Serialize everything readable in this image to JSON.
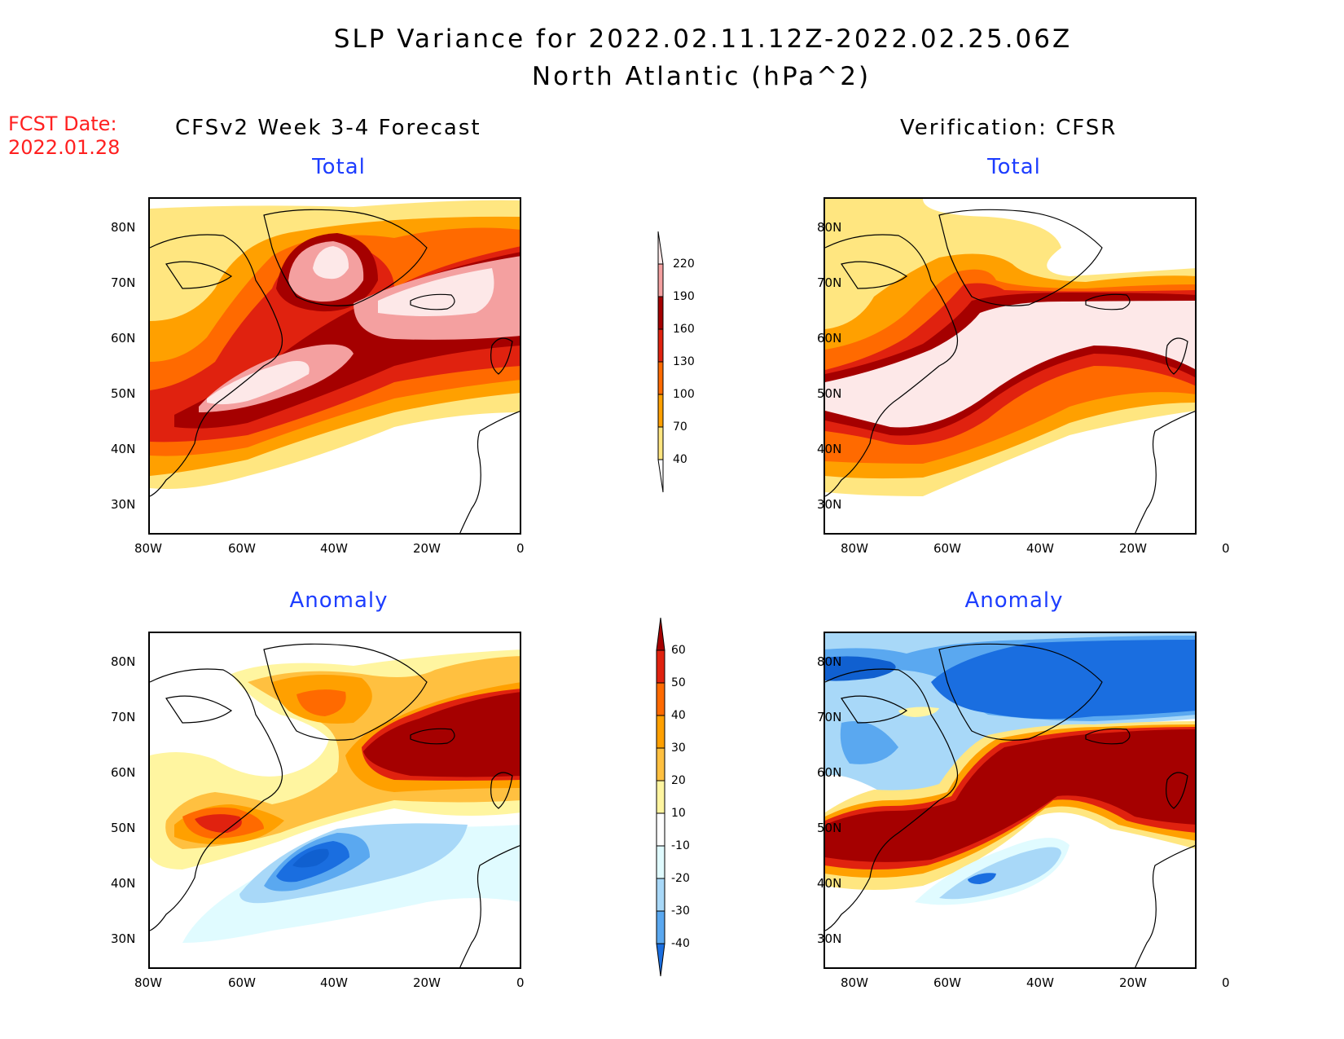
{
  "header": {
    "title_line1": "SLP Variance for 2022.02.11.12Z-2022.02.25.06Z",
    "title_line2": "North Atlantic (hPa^2)",
    "fcst_label": "FCST Date:",
    "fcst_date": "2022.01.28",
    "left_column": "CFSv2 Week 3-4 Forecast",
    "right_column": "Verification: CFSR"
  },
  "panels": [
    {
      "id": "fcst-total",
      "title": "Total"
    },
    {
      "id": "verif-total",
      "title": "Total"
    },
    {
      "id": "fcst-anom",
      "title": "Anomaly"
    },
    {
      "id": "verif-anom",
      "title": "Anomaly"
    }
  ],
  "axes": {
    "lat_ticks": [
      "80N",
      "70N",
      "60N",
      "50N",
      "40N",
      "30N"
    ],
    "lon_ticks": [
      "80W",
      "60W",
      "40W",
      "20W",
      "0"
    ]
  },
  "colorbar_total": {
    "levels": [
      "220",
      "190",
      "160",
      "130",
      "100",
      "70",
      "40"
    ],
    "colors": [
      "#fde8e8",
      "#f4a0a0",
      "#a50000",
      "#e0220f",
      "#ff6a00",
      "#ffa000",
      "#ffe680"
    ]
  },
  "colorbar_anomaly": {
    "levels": [
      "60",
      "50",
      "40",
      "30",
      "20",
      "10",
      "-10",
      "-20",
      "-30",
      "-40"
    ],
    "colors_pos": [
      "#a50000",
      "#e0220f",
      "#ff6a00",
      "#ffa000",
      "#ffc040",
      "#fff5a0"
    ],
    "colors_neg": [
      "#e0fbff",
      "#a8d8f8",
      "#5aa8f0",
      "#1a6ee0",
      "#1060d0"
    ]
  },
  "colors": {
    "title_blue": "#1d3dff",
    "fcst_red": "#ff2020"
  }
}
